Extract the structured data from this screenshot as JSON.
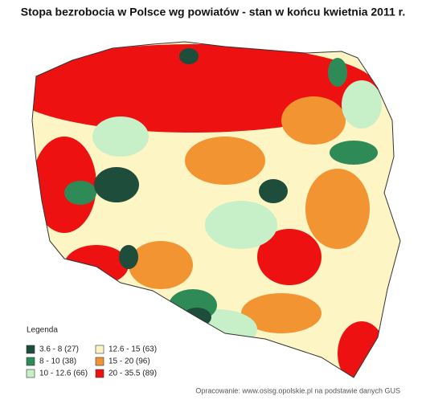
{
  "title": "Stopa bezrobocia w Polsce wg powiatów - stan w końcu kwietnia 2011 r.",
  "legend": {
    "title": "Legenda",
    "items": [
      {
        "label": "3.6 - 8 (27)",
        "color": "#1e4d3b"
      },
      {
        "label": "8 - 10 (38)",
        "color": "#2e8b57"
      },
      {
        "label": "10 - 12.6 (66)",
        "color": "#c8f0c8"
      },
      {
        "label": "12.6 - 15 (63)",
        "color": "#fdf5c4"
      },
      {
        "label": "15 - 20 (96)",
        "color": "#f39432"
      },
      {
        "label": "20 - 35.5 (89)",
        "color": "#ee1111"
      }
    ]
  },
  "source": "Opracowanie: www.osisg.opolskie.pl na podstawie danych GUS"
}
